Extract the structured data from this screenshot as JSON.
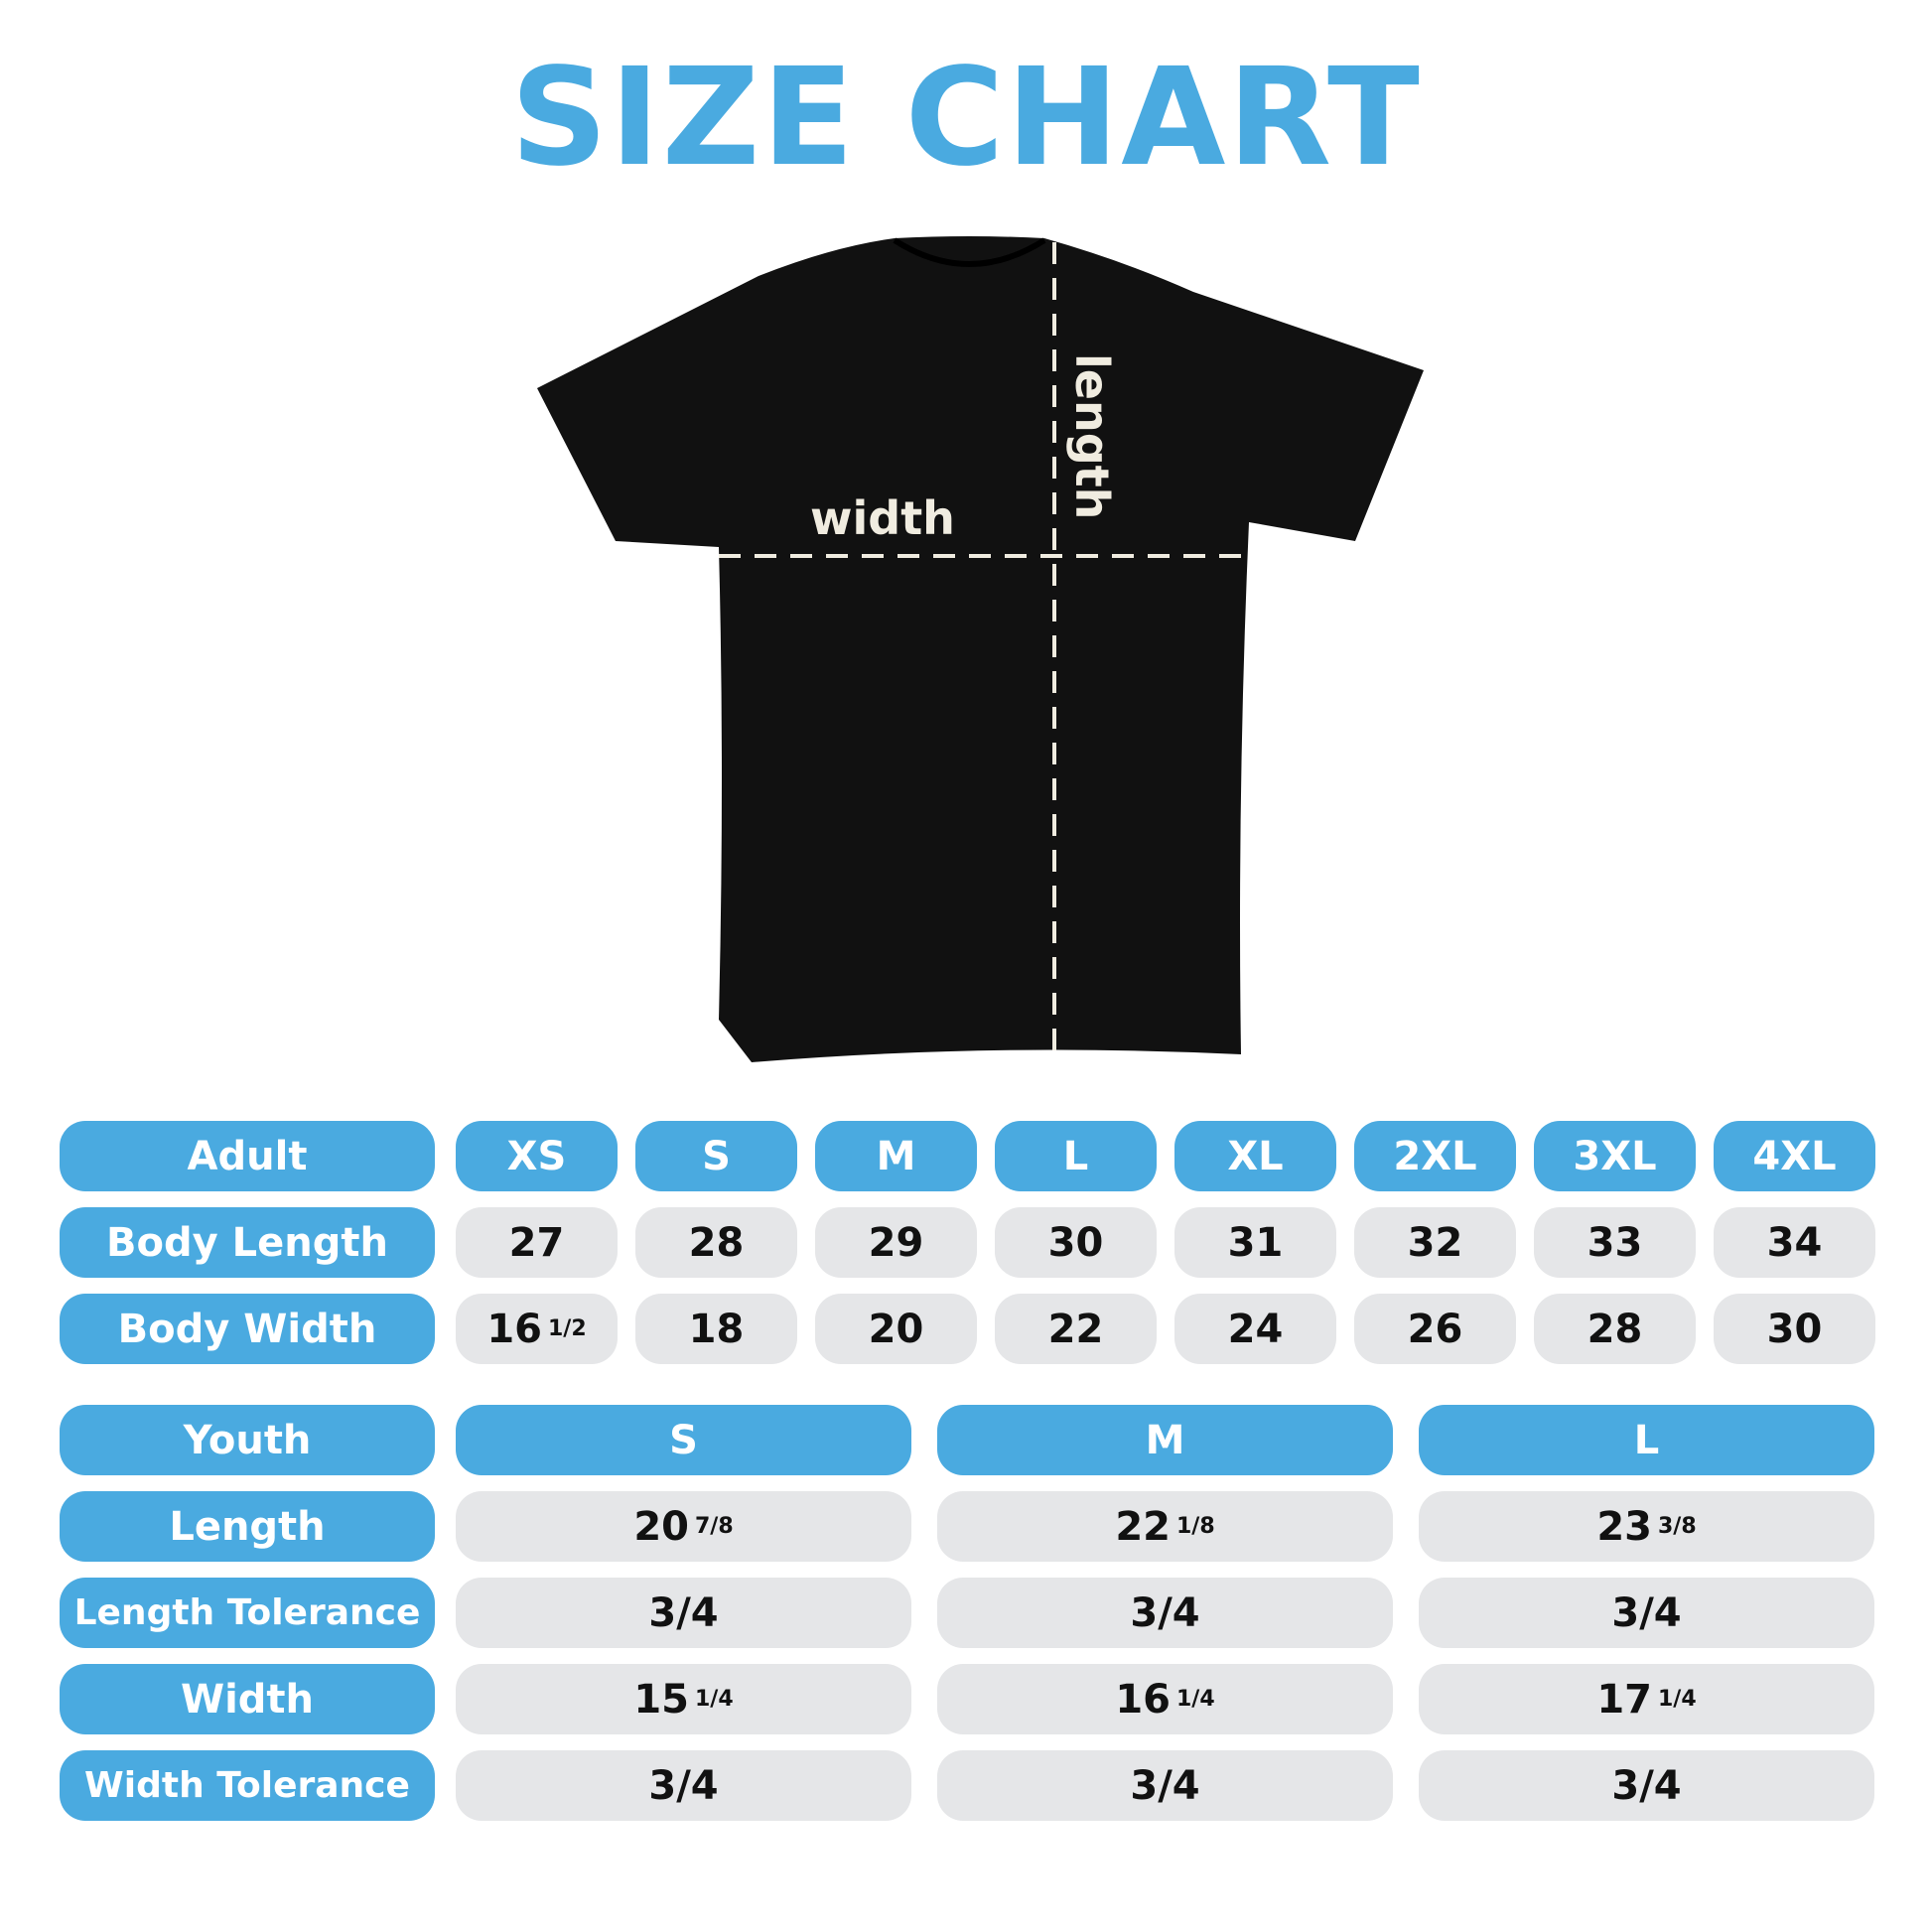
{
  "title": "SIZE CHART",
  "shirt": {
    "width_label": "width",
    "length_label": "length",
    "shirt_color": "#111111",
    "line_color": "#f0ece0"
  },
  "colors": {
    "accent": "#4aaae0",
    "cell": "#e5e6e8"
  },
  "adult": {
    "header": "Adult",
    "sizes": [
      "XS",
      "S",
      "M",
      "L",
      "XL",
      "2XL",
      "3XL",
      "4XL"
    ],
    "rows": [
      {
        "label": "Body Length",
        "values": [
          {
            "v": "27"
          },
          {
            "v": "28"
          },
          {
            "v": "29"
          },
          {
            "v": "30"
          },
          {
            "v": "31"
          },
          {
            "v": "32"
          },
          {
            "v": "33"
          },
          {
            "v": "34"
          }
        ]
      },
      {
        "label": "Body Width",
        "values": [
          {
            "v": "16",
            "f": "1/2"
          },
          {
            "v": "18"
          },
          {
            "v": "20"
          },
          {
            "v": "22"
          },
          {
            "v": "24"
          },
          {
            "v": "26"
          },
          {
            "v": "28"
          },
          {
            "v": "30"
          }
        ]
      }
    ]
  },
  "youth": {
    "header": "Youth",
    "sizes": [
      "S",
      "M",
      "L"
    ],
    "rows": [
      {
        "label": "Length",
        "values": [
          {
            "v": "20",
            "f": "7/8"
          },
          {
            "v": "22",
            "f": "1/8"
          },
          {
            "v": "23",
            "f": "3/8"
          }
        ]
      },
      {
        "label": "Length Tolerance",
        "values": [
          {
            "v": "3/4"
          },
          {
            "v": "3/4"
          },
          {
            "v": "3/4"
          }
        ]
      },
      {
        "label": "Width",
        "values": [
          {
            "v": "15",
            "f": "1/4"
          },
          {
            "v": "16",
            "f": "1/4"
          },
          {
            "v": "17",
            "f": "1/4"
          }
        ]
      },
      {
        "label": "Width Tolerance",
        "values": [
          {
            "v": "3/4"
          },
          {
            "v": "3/4"
          },
          {
            "v": "3/4"
          }
        ]
      }
    ]
  }
}
